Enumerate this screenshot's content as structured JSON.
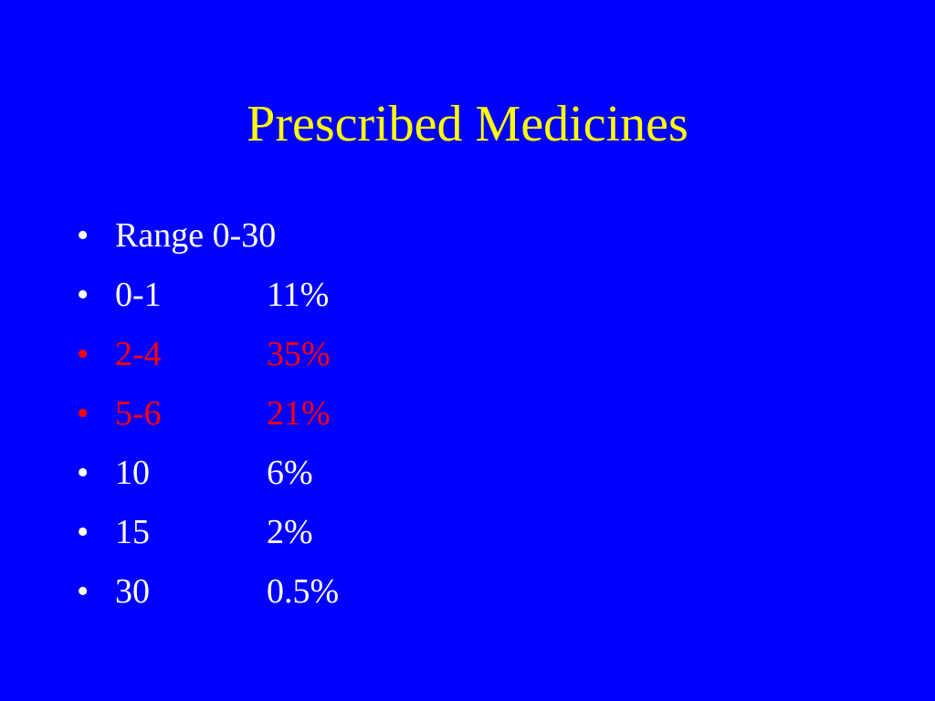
{
  "slide": {
    "title": "Prescribed Medicines",
    "bullet_char": "•",
    "colors": {
      "background": "#0000FF",
      "title": "#FFFF00",
      "default_text": "#FFFFFF",
      "highlight_text": "#FF0000"
    },
    "items": [
      {
        "label": "Range 0-30",
        "value": "",
        "highlight": false
      },
      {
        "label": "0-1",
        "value": "11%",
        "highlight": false
      },
      {
        "label": "2-4",
        "value": "35%",
        "highlight": true
      },
      {
        "label": "5-6",
        "value": "21%",
        "highlight": true
      },
      {
        "label": "10",
        "value": "6%",
        "highlight": false
      },
      {
        "label": "15",
        "value": "2%",
        "highlight": false
      },
      {
        "label": "30",
        "value": "0.5%",
        "highlight": false
      }
    ]
  }
}
